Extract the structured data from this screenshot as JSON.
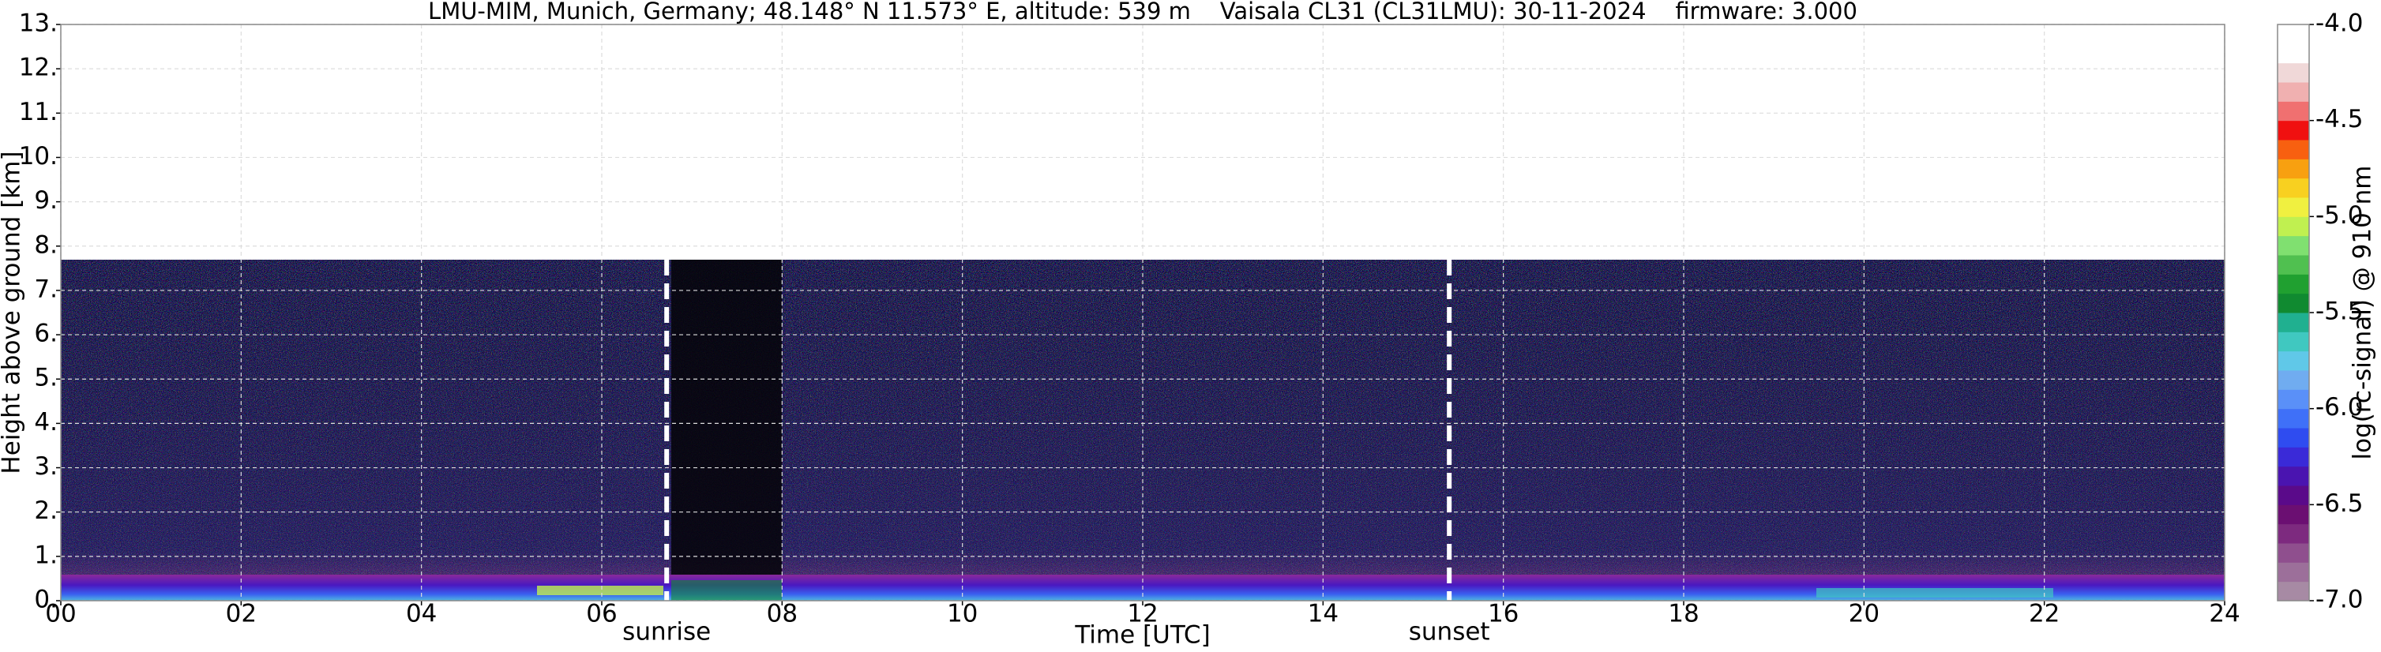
{
  "chart_data": {
    "type": "heatmap",
    "title": "LMU-MIM, Munich, Germany; 48.148° N 11.573° E, altitude: 539 m    Vaisala CL31 (CL31LMU): 30-11-2024    firmware: 3.000",
    "x_label": "Time [UTC]",
    "y_label": "Height above ground [km]",
    "xlim": [
      0,
      24
    ],
    "xticks": [
      {
        "value": 0,
        "label": "00"
      },
      {
        "value": 2,
        "label": "02"
      },
      {
        "value": 4,
        "label": "04"
      },
      {
        "value": 6,
        "label": "06"
      },
      {
        "value": 8,
        "label": "08"
      },
      10,
      12,
      14,
      16,
      18,
      20,
      22,
      24
    ],
    "ylim": [
      0,
      13
    ],
    "yticks": [
      {
        "value": 0,
        "label": "0."
      },
      {
        "value": 1,
        "label": "1."
      },
      {
        "value": 2,
        "label": "2."
      },
      {
        "value": 3,
        "label": "3."
      },
      {
        "value": 4,
        "label": "4."
      },
      {
        "value": 5,
        "label": "5."
      },
      {
        "value": 6,
        "label": "6."
      },
      {
        "value": 7,
        "label": "7."
      },
      {
        "value": 8,
        "label": "8."
      },
      {
        "value": 9,
        "label": "9."
      },
      {
        "value": 10,
        "label": "10."
      },
      {
        "value": 11,
        "label": "11."
      },
      {
        "value": 12,
        "label": "12."
      },
      {
        "value": 13,
        "label": "13."
      }
    ],
    "grid": true,
    "colorbar": {
      "label": "log(rc-signal) @ 910 nm",
      "lim": [
        -7,
        -4
      ],
      "ticks": [
        {
          "value": -7,
          "label": "-7.0"
        },
        -6.5,
        {
          "value": -6,
          "label": "-6.0"
        },
        -5.5,
        {
          "value": -5,
          "label": "-5.0"
        },
        -4.5,
        {
          "value": -4,
          "label": "-4.0"
        }
      ],
      "colors": [
        "#a78aa4",
        "#9c6f9a",
        "#8f4f8e",
        "#7d2a7f",
        "#6b0f72",
        "#5a0a8a",
        "#4a14b0",
        "#3a2ad8",
        "#2f4cf0",
        "#3f70f8",
        "#5a90f8",
        "#70acf0",
        "#60c8e8",
        "#40c8c0",
        "#20b090",
        "#108a30",
        "#20a030",
        "#50c050",
        "#80e070",
        "#c0f050",
        "#f0f040",
        "#f8d020",
        "#f8a010",
        "#f86010",
        "#f01010",
        "#f07070",
        "#f0b0b0",
        "#f0d8d8",
        "#ffffff",
        "#ffffff"
      ]
    },
    "annotations": [
      {
        "text": "sunrise",
        "x": 6.72
      },
      {
        "text": "sunset",
        "x": 15.4
      }
    ]
  }
}
